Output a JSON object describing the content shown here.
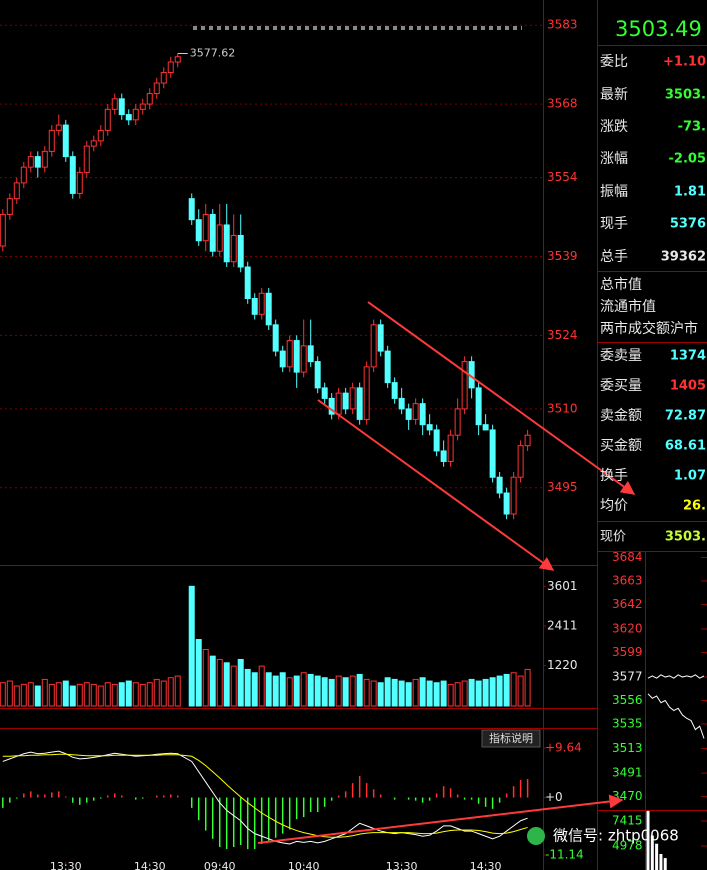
{
  "chart_data": [
    {
      "type": "candlestick",
      "x": [
        1,
        2,
        3,
        4,
        5,
        6,
        7,
        8,
        9,
        10,
        11,
        12,
        13,
        14,
        15,
        16,
        17,
        18,
        19,
        20,
        21,
        22,
        23,
        24,
        25,
        26,
        28,
        29,
        30,
        31,
        32,
        33,
        34,
        35,
        36,
        37,
        38,
        39,
        40,
        41,
        42,
        43,
        44,
        45,
        46,
        47,
        48,
        49,
        50,
        51,
        52,
        53,
        54,
        55,
        56,
        57,
        58,
        59,
        60,
        61,
        62,
        63,
        64,
        65,
        66,
        67,
        68,
        69,
        70,
        71,
        72,
        73,
        74,
        75,
        76
      ],
      "open": [
        3541,
        3547,
        3550,
        3553,
        3556,
        3558,
        3556,
        3559,
        3563,
        3564,
        3558,
        3551,
        3555,
        3560,
        3561,
        3563,
        3567,
        3569,
        3566,
        3565,
        3567,
        3568,
        3570,
        3572,
        3574,
        3576,
        3550,
        3546,
        3542,
        3547,
        3540,
        3545,
        3538,
        3543,
        3537,
        3531,
        3528,
        3532,
        3526,
        3521,
        3518,
        3523,
        3517,
        3522,
        3519,
        3514,
        3512,
        3509,
        3513,
        3510,
        3514,
        3508,
        3518,
        3526,
        3521,
        3515,
        3512,
        3510,
        3508,
        3511,
        3507,
        3506,
        3502,
        3500,
        3505,
        3510,
        3519,
        3514,
        3507,
        3506,
        3497,
        3494,
        3490,
        3497,
        3503
      ],
      "high": [
        3548,
        3551,
        3554,
        3557,
        3559,
        3559,
        3560,
        3564,
        3566,
        3565,
        3559,
        3556,
        3561,
        3562,
        3564,
        3568,
        3570,
        3570,
        3567,
        3568,
        3569,
        3571,
        3573,
        3575,
        3577,
        3577.62,
        3551,
        3548,
        3549,
        3548,
        3549,
        3549,
        3547,
        3547,
        3538,
        3532,
        3533,
        3533,
        3527,
        3522,
        3524,
        3524,
        3527,
        3527,
        3520,
        3515,
        3513,
        3514,
        3514,
        3515,
        3515,
        3519,
        3527,
        3527,
        3522,
        3516,
        3514,
        3511,
        3512,
        3512,
        3509,
        3507,
        3504,
        3506,
        3512,
        3520,
        3520,
        3515,
        3509,
        3507,
        3498,
        3495,
        3498,
        3504,
        3506
      ],
      "low": [
        3540,
        3546,
        3549,
        3552,
        3555,
        3554,
        3555,
        3558,
        3562,
        3557,
        3550,
        3550,
        3554,
        3559,
        3560,
        3562,
        3566,
        3565,
        3564,
        3564,
        3566,
        3567,
        3569,
        3571,
        3573,
        3575,
        3545,
        3541,
        3540,
        3539,
        3539,
        3537,
        3537,
        3536,
        3530,
        3527,
        3527,
        3525,
        3520,
        3517,
        3517,
        3514,
        3516,
        3518,
        3513,
        3511,
        3508,
        3508,
        3509,
        3509,
        3507,
        3507,
        3517,
        3520,
        3514,
        3511,
        3509,
        3506,
        3507,
        3505,
        3505,
        3501,
        3499,
        3499,
        3504,
        3509,
        3512,
        3505,
        3506,
        3496,
        3493,
        3489,
        3489,
        3496,
        3502
      ],
      "close": [
        3547,
        3550,
        3553,
        3556,
        3558,
        3556,
        3559,
        3563,
        3564,
        3558,
        3551,
        3555,
        3560,
        3561,
        3563,
        3567,
        3569,
        3566,
        3565,
        3567,
        3568,
        3570,
        3572,
        3574,
        3576,
        3577,
        3546,
        3542,
        3547,
        3540,
        3545,
        3538,
        3543,
        3537,
        3531,
        3528,
        3532,
        3526,
        3521,
        3518,
        3523,
        3517,
        3522,
        3519,
        3514,
        3512,
        3509,
        3513,
        3510,
        3514,
        3508,
        3518,
        3526,
        3521,
        3515,
        3512,
        3510,
        3508,
        3511,
        3507,
        3506,
        3502,
        3500,
        3505,
        3510,
        3519,
        3514,
        3507,
        3506,
        3497,
        3494,
        3490,
        3497,
        3503,
        3505
      ],
      "up_color": "#ff3232",
      "down_color": "#54ffff",
      "xlim": [
        0.6,
        78.2
      ],
      "ylim": [
        3480.3,
        3587.8
      ],
      "yticks": [
        3495,
        3510,
        3524,
        3539,
        3554,
        3568,
        3583
      ],
      "xticks": [
        {
          "value": 10,
          "label": "13:30"
        },
        {
          "value": 22,
          "label": "14:30"
        },
        {
          "value": 32,
          "label": "09:40"
        },
        {
          "value": 44,
          "label": "10:40"
        },
        {
          "value": 58,
          "label": "13:30"
        },
        {
          "value": 70,
          "label": "14:30"
        }
      ],
      "tick_color": "#ff3232",
      "grid": true
    },
    {
      "type": "volume",
      "x": [
        1,
        2,
        3,
        4,
        5,
        6,
        7,
        8,
        9,
        10,
        11,
        12,
        13,
        14,
        15,
        16,
        17,
        18,
        19,
        20,
        21,
        22,
        23,
        24,
        25,
        26,
        28,
        29,
        30,
        31,
        32,
        33,
        34,
        35,
        36,
        37,
        38,
        39,
        40,
        41,
        42,
        43,
        44,
        45,
        46,
        47,
        48,
        49,
        50,
        51,
        52,
        53,
        54,
        55,
        56,
        57,
        58,
        59,
        60,
        61,
        62,
        63,
        64,
        65,
        66,
        67,
        68,
        69,
        70,
        71,
        72,
        73,
        74,
        75,
        76
      ],
      "values": [
        700,
        750,
        600,
        650,
        700,
        600,
        800,
        650,
        700,
        750,
        600,
        650,
        700,
        650,
        600,
        700,
        650,
        700,
        750,
        700,
        650,
        700,
        800,
        750,
        850,
        900,
        3600,
        2000,
        1700,
        1500,
        1400,
        1300,
        1200,
        1400,
        1100,
        1000,
        1200,
        1000,
        900,
        1000,
        850,
        900,
        1000,
        950,
        900,
        850,
        800,
        900,
        850,
        900,
        950,
        800,
        750,
        700,
        850,
        800,
        750,
        700,
        800,
        850,
        750,
        700,
        750,
        650,
        700,
        750,
        800,
        750,
        800,
        850,
        900,
        950,
        1000,
        900,
        1100
      ],
      "xlim": [
        0.6,
        78.2
      ],
      "ylim": [
        0,
        3700
      ],
      "yticks": [
        3601,
        2411,
        1220
      ],
      "tick_color": "#e8e8e8"
    },
    {
      "type": "macd",
      "x": [
        1,
        2,
        3,
        4,
        5,
        6,
        7,
        8,
        9,
        10,
        11,
        12,
        13,
        14,
        15,
        16,
        17,
        18,
        19,
        20,
        21,
        22,
        23,
        24,
        25,
        26,
        28,
        29,
        30,
        31,
        32,
        33,
        34,
        35,
        36,
        37,
        38,
        39,
        40,
        41,
        42,
        43,
        44,
        45,
        46,
        47,
        48,
        49,
        50,
        51,
        52,
        53,
        54,
        55,
        56,
        57,
        58,
        59,
        60,
        61,
        62,
        63,
        64,
        65,
        66,
        67,
        68,
        69,
        70,
        71,
        72,
        73,
        74,
        75,
        76
      ],
      "dif": [
        7,
        7.5,
        8,
        8.5,
        8.8,
        8.5,
        8.6,
        8.8,
        9,
        8.5,
        7.8,
        7.5,
        7.6,
        7.8,
        8,
        8.3,
        8.6,
        8.4,
        8.2,
        8,
        8.1,
        8.2,
        8.4,
        8.5,
        8.6,
        8.5,
        7,
        5,
        3,
        1,
        -1,
        -2.5,
        -3.5,
        -4.5,
        -6,
        -7,
        -7.5,
        -8,
        -8.5,
        -8.8,
        -9,
        -8.5,
        -8.7,
        -8.5,
        -8.8,
        -8.5,
        -8,
        -7.5,
        -7,
        -6,
        -5,
        -5.5,
        -6,
        -6.5,
        -6.8,
        -7,
        -6.8,
        -7,
        -7.2,
        -7.5,
        -7.3,
        -6.5,
        -5.5,
        -5.5,
        -6,
        -6.5,
        -6.5,
        -7,
        -7.5,
        -8,
        -7.5,
        -6.5,
        -5.5,
        -4.5,
        -4
      ],
      "dea": [
        8,
        8,
        8.1,
        8.1,
        8.2,
        8.2,
        8.3,
        8.3,
        8.4,
        8.4,
        8.3,
        8.2,
        8.1,
        8.1,
        8.1,
        8.1,
        8.2,
        8.2,
        8.2,
        8.2,
        8.2,
        8.2,
        8.2,
        8.3,
        8.3,
        8.3,
        8,
        7.2,
        6.2,
        5,
        3.8,
        2.5,
        1.3,
        0.1,
        -1,
        -2,
        -3,
        -3.8,
        -4.6,
        -5.3,
        -5.9,
        -6.4,
        -6.8,
        -7.1,
        -7.4,
        -7.6,
        -7.7,
        -7.7,
        -7.6,
        -7.4,
        -7.1,
        -6.9,
        -6.8,
        -6.8,
        -6.8,
        -6.8,
        -6.8,
        -6.8,
        -6.9,
        -7,
        -7,
        -6.9,
        -6.6,
        -6.4,
        -6.3,
        -6.3,
        -6.3,
        -6.4,
        -6.6,
        -6.9,
        -7,
        -6.9,
        -6.6,
        -6.2,
        -5.8
      ],
      "histogram": [
        -2,
        -1,
        -0.2,
        0.8,
        1.2,
        0.6,
        0.6,
        1,
        1.2,
        0.2,
        -1,
        -1.4,
        -1,
        -0.6,
        -0.2,
        0.4,
        0.8,
        0.4,
        0,
        -0.4,
        -0.2,
        0,
        0.4,
        0.4,
        0.6,
        0.4,
        -2,
        -4.4,
        -6.4,
        -8,
        -9.6,
        -10,
        -9.6,
        -9.2,
        -10,
        -10,
        -9,
        -8.4,
        -7.8,
        -7,
        -6.2,
        -4.2,
        -3.8,
        -2.8,
        -2.8,
        -1.8,
        -0.6,
        0.4,
        1.2,
        2.8,
        4.2,
        2.8,
        1.6,
        0.6,
        0,
        -0.4,
        0,
        -0.4,
        -0.6,
        -1,
        -0.6,
        0.8,
        2.2,
        1.8,
        0.6,
        -0.4,
        -0.4,
        -1.2,
        -1.8,
        -2.2,
        -1,
        0.8,
        2.2,
        3.4,
        3.6
      ],
      "dif_color": "#ffffff",
      "dea_color": "#ffff00",
      "up_color": "#ff3232",
      "down_color": "#33ff33",
      "xlim": [
        0.6,
        78.2
      ],
      "ylim": [
        -12.5,
        13.1
      ],
      "yticks": [
        {
          "value": 9.64,
          "label": "+9.64"
        },
        {
          "value": 0,
          "label": "+0"
        },
        -11.14
      ],
      "ytick_colors": [
        "#ff3232",
        "#e8e8e8",
        "#33ff33"
      ],
      "button": "指标说明"
    },
    {
      "type": "line",
      "x": [
        0,
        1,
        2,
        3,
        4,
        5,
        6,
        7,
        8,
        9,
        10,
        11,
        12,
        13
      ],
      "series": [
        {
          "color": "#ffffff",
          "values": [
            3576,
            3578,
            3576,
            3579,
            3577,
            3578,
            3576,
            3579,
            3577,
            3578,
            3577,
            3579,
            3576,
            3578
          ]
        },
        {
          "color": "#ffffff",
          "values": [
            3562,
            3558,
            3560,
            3554,
            3556,
            3550,
            3547,
            3549,
            3543,
            3540,
            3538,
            3530,
            3533,
            3522
          ]
        }
      ],
      "xlim": [
        0,
        13
      ],
      "ylim": [
        3458,
        3688
      ],
      "yticks": [
        3684,
        3663,
        3642,
        3620,
        3599,
        3577,
        3556,
        3535,
        3513,
        3491,
        3470
      ],
      "ytick_colors": [
        "#ff3232",
        "#ff3232",
        "#ff3232",
        "#ff3232",
        "#ff3232",
        "#e8e8e8",
        "#33ff33",
        "#33ff33",
        "#33ff33",
        "#33ff33",
        "#33ff33"
      ]
    },
    {
      "type": "minivolume",
      "x": [
        0,
        1,
        2,
        3,
        4
      ],
      "values": [
        8400,
        6000,
        5200,
        4200,
        3800
      ],
      "color": "#ffffff",
      "xlim": [
        0,
        13
      ],
      "ylim": [
        2638,
        8487
      ],
      "yticks": [
        7415,
        4978
      ],
      "tick_color": "#33ff33"
    }
  ],
  "quote": {
    "price": "3503.49",
    "price_color": "#33ff33",
    "rows": [
      {
        "label": "委比",
        "value": "+1.10",
        "color": "#ff3232"
      },
      {
        "label": "最新",
        "value": "3503.",
        "color": "#33ff33"
      },
      {
        "label": "涨跌",
        "value": "-73.",
        "color": "#33ff33"
      },
      {
        "label": "涨幅",
        "value": "-2.05",
        "color": "#33ff33"
      },
      {
        "label": "振幅",
        "value": "1.81",
        "color": "#54ffff"
      },
      {
        "label": "现手",
        "value": "5376",
        "color": "#54ffff"
      },
      {
        "label": "总手",
        "value": "39362",
        "color": "#e8e8e8"
      },
      {
        "label": "总市值"
      },
      {
        "label": "流通市值"
      },
      {
        "label": "两市成交额沪市"
      },
      {
        "label": "委卖量",
        "value": "1374",
        "color": "#54ffff"
      },
      {
        "label": "委买量",
        "value": "1405",
        "color": "#ff3232"
      },
      {
        "label": "卖金额",
        "value": "72.87",
        "color": "#54ffff"
      },
      {
        "label": "买金额",
        "value": "68.61",
        "color": "#54ffff"
      },
      {
        "label": "换手",
        "value": "1.07",
        "color": "#54ffff"
      },
      {
        "label": "均价",
        "value": "26.",
        "color": "#ffff00"
      },
      {
        "label": "现价",
        "value": "3503.",
        "color": "#c8ff33"
      }
    ]
  },
  "watermark": "微信号: zhtp0068"
}
